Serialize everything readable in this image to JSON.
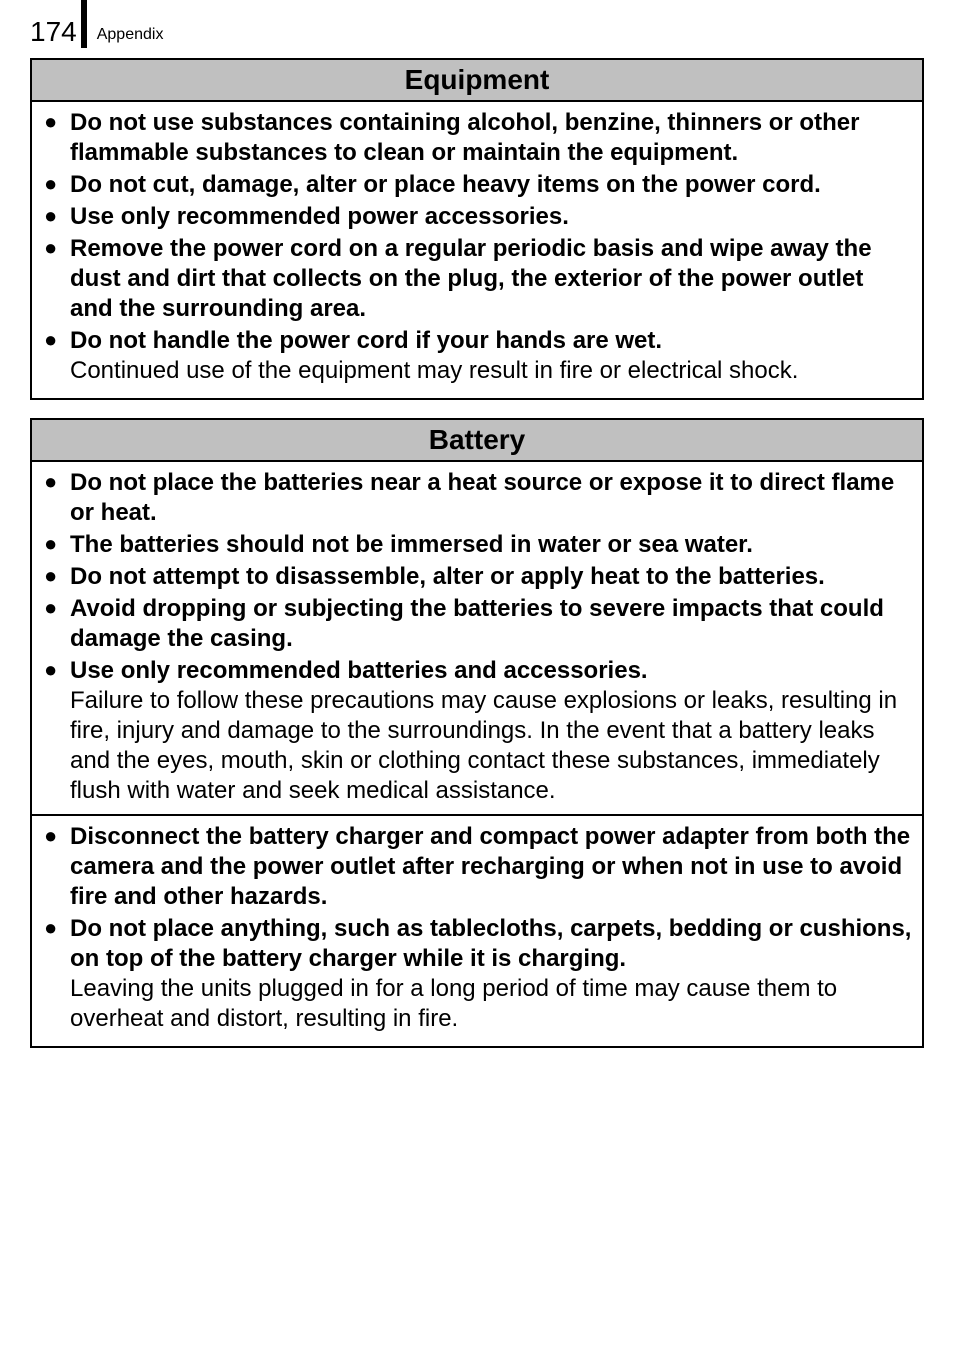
{
  "page": {
    "number": "174",
    "section_label": "Appendix"
  },
  "boxes": {
    "equipment": {
      "title": "Equipment",
      "items": [
        {
          "bold": "Do not use substances containing alcohol, benzine, thinners or other flammable substances to clean or maintain the equipment."
        },
        {
          "bold": "Do not cut, damage, alter or place heavy items on the power cord."
        },
        {
          "bold": "Use only recommended power accessories."
        },
        {
          "bold": "Remove the power cord on a regular periodic basis and wipe away the dust and dirt that collects on the plug, the exterior of the power outlet and the surrounding area."
        },
        {
          "bold": "Do not handle the power cord if your hands are wet.",
          "plain": "Continued use of the equipment may result in fire or electrical shock."
        }
      ]
    },
    "battery": {
      "title": "Battery",
      "items_top": [
        {
          "bold": "Do not place the batteries near a heat source or expose it to direct flame or heat."
        },
        {
          "bold": "The batteries should not be immersed in water or sea water."
        },
        {
          "bold": "Do not attempt to disassemble, alter or apply heat to the batteries."
        },
        {
          "bold": "Avoid dropping or subjecting the batteries to severe impacts that could damage the casing."
        },
        {
          "bold": "Use only recommended batteries and accessories.",
          "plain": "Failure to follow these precautions may cause explosions or leaks, resulting in fire, injury and damage to the surroundings. In the event that a battery leaks and the eyes, mouth, skin or clothing contact these substances, immediately flush with water and seek medical assistance."
        }
      ],
      "items_bottom": [
        {
          "bold": "Disconnect the battery charger and compact power adapter from both the camera and the power outlet after recharging or when not in use to avoid fire and other hazards."
        },
        {
          "bold": "Do not place anything, such as tablecloths, carpets, bedding or cushions, on top of the battery charger while it is charging.",
          "plain": "Leaving the units plugged in for a long period of time may cause them to overheat and distort, resulting in fire."
        }
      ]
    }
  }
}
